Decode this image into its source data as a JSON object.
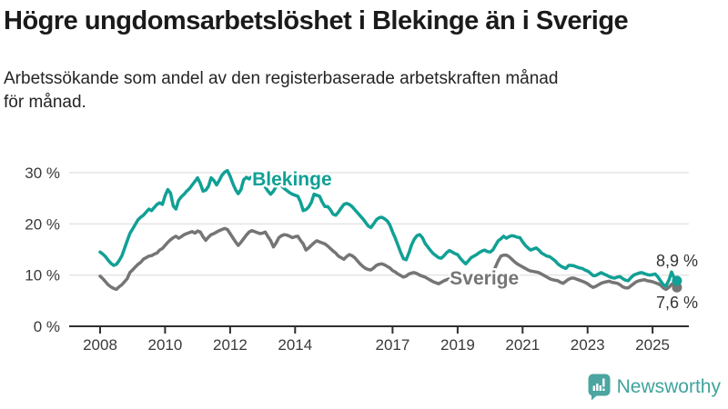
{
  "header": {
    "title": "Högre ungdomsarbetslöshet i Blekinge än i Sverige",
    "subtitle_line1": "Arbetssökande som andel av den registerbaserade arbetskraften månad",
    "subtitle_line2": "för månad."
  },
  "footer": {
    "brand": "Newsworthy",
    "brand_color": "#3fa49c",
    "icon": "newsworthy-bar-chart-bubble"
  },
  "chart_data": {
    "type": "line",
    "title": "Högre ungdomsarbetslöshet i Blekinge än i Sverige",
    "subtitle": "Arbetssökande som andel av den registerbaserade arbetskraften månad för månad.",
    "x_unit": "month",
    "x_start_year": 2008,
    "x_end_label_values": [
      "8,9 %",
      "7,6 %"
    ],
    "ylim": [
      0,
      32
    ],
    "grid": "horizontal",
    "legend_position": "inline-labels",
    "y_ticks": [
      {
        "v": 0,
        "label": "0 %"
      },
      {
        "v": 10,
        "label": "10 %"
      },
      {
        "v": 20,
        "label": "20 %"
      },
      {
        "v": 30,
        "label": "30 %"
      }
    ],
    "x_ticks": [
      {
        "year": 2008,
        "label": "2008"
      },
      {
        "year": 2010,
        "label": "2010"
      },
      {
        "year": 2012,
        "label": "2012"
      },
      {
        "year": 2014,
        "label": "2014"
      },
      {
        "year": 2017,
        "label": "2017"
      },
      {
        "year": 2019,
        "label": "2019"
      },
      {
        "year": 2021,
        "label": "2021"
      },
      {
        "year": 2023,
        "label": "2023"
      },
      {
        "year": 2025,
        "label": "2025"
      }
    ],
    "series": [
      {
        "name": "Blekinge",
        "color": "#11a095",
        "label_year": 2012.68,
        "label_value": 27.5,
        "end_label": "8,9 %",
        "end_label_position": "above",
        "values": [
          14.5,
          14.1,
          13.6,
          12.9,
          12.3,
          11.9,
          12.1,
          12.8,
          13.7,
          15.2,
          16.7,
          18.1,
          19.0,
          19.9,
          20.8,
          21.3,
          21.7,
          22.3,
          22.9,
          22.6,
          23.2,
          23.8,
          24.1,
          23.8,
          25.5,
          26.7,
          26.0,
          23.5,
          22.9,
          24.6,
          25.3,
          25.8,
          26.4,
          26.9,
          27.6,
          28.3,
          29.0,
          27.9,
          26.4,
          26.6,
          27.3,
          29.0,
          28.5,
          27.6,
          28.5,
          29.5,
          30.1,
          30.4,
          29.3,
          27.9,
          26.7,
          25.9,
          26.7,
          28.6,
          29.1,
          28.8,
          29.2,
          29.6,
          29.3,
          28.7,
          28.0,
          27.2,
          26.4,
          25.8,
          26.4,
          27.3,
          27.9,
          27.4,
          26.9,
          26.5,
          26.1,
          25.8,
          25.6,
          25.4,
          24.3,
          22.6,
          22.8,
          23.3,
          24.2,
          25.8,
          25.6,
          25.4,
          24.3,
          23.4,
          23.4,
          22.8,
          21.9,
          21.7,
          22.3,
          23.1,
          23.8,
          24.0,
          23.8,
          23.4,
          22.8,
          22.2,
          21.6,
          21.0,
          20.3,
          19.6,
          19.3,
          20.0,
          20.8,
          21.2,
          21.3,
          21.0,
          20.6,
          19.8,
          18.4,
          17.2,
          15.8,
          14.4,
          13.2,
          13.0,
          14.3,
          15.9,
          17.0,
          17.7,
          17.9,
          17.3,
          16.2,
          15.5,
          14.8,
          14.2,
          13.8,
          13.4,
          13.3,
          13.8,
          14.4,
          14.8,
          14.5,
          14.2,
          14.0,
          13.3,
          12.7,
          12.2,
          12.8,
          13.4,
          13.7,
          14.0,
          14.4,
          14.7,
          14.9,
          14.6,
          14.5,
          14.9,
          15.8,
          16.7,
          17.1,
          17.6,
          17.2,
          17.5,
          17.7,
          17.6,
          17.4,
          17.3,
          16.5,
          15.8,
          15.3,
          14.9,
          15.1,
          15.3,
          14.9,
          14.3,
          14.0,
          13.7,
          13.6,
          13.2,
          12.8,
          12.2,
          11.8,
          11.5,
          11.3,
          11.9,
          11.9,
          11.8,
          11.6,
          11.4,
          11.3,
          11.0,
          10.8,
          10.4,
          9.9,
          9.9,
          10.2,
          10.5,
          10.2,
          10.0,
          9.7,
          9.5,
          9.4,
          9.6,
          9.7,
          9.3,
          9.0,
          8.9,
          9.5,
          10.0,
          10.2,
          10.4,
          10.5,
          10.3,
          10.1,
          10.0,
          10.1,
          10.2,
          9.6,
          8.8,
          8.1,
          7.9,
          9.0,
          10.6,
          9.4,
          8.9
        ]
      },
      {
        "name": "Sverige",
        "color": "#757575",
        "label_year": 2018.76,
        "label_value": 8.2,
        "end_label": "7,6 %",
        "end_label_position": "below",
        "values": [
          9.8,
          9.3,
          8.7,
          8.1,
          7.7,
          7.4,
          7.2,
          7.7,
          8.1,
          8.7,
          9.3,
          10.5,
          11.0,
          11.6,
          12.1,
          12.5,
          13.1,
          13.4,
          13.7,
          13.8,
          14.1,
          14.3,
          14.9,
          15.2,
          15.8,
          16.4,
          16.9,
          17.3,
          17.6,
          17.2,
          17.5,
          17.9,
          18.1,
          18.3,
          18.5,
          18.2,
          18.6,
          18.4,
          17.5,
          16.8,
          17.4,
          17.9,
          18.1,
          18.4,
          18.7,
          18.9,
          19.1,
          18.9,
          18.1,
          17.3,
          16.5,
          15.8,
          16.4,
          17.1,
          17.8,
          18.4,
          18.7,
          18.5,
          18.3,
          18.1,
          18.2,
          18.4,
          17.5,
          16.7,
          15.5,
          16.3,
          17.3,
          17.7,
          17.9,
          17.8,
          17.6,
          17.3,
          17.5,
          17.6,
          16.8,
          16.1,
          14.9,
          15.3,
          15.8,
          16.3,
          16.7,
          16.5,
          16.3,
          16.1,
          15.7,
          15.2,
          14.7,
          14.3,
          13.7,
          13.4,
          13.1,
          13.6,
          14.0,
          13.8,
          13.4,
          12.8,
          12.2,
          11.7,
          11.3,
          11.1,
          11.0,
          11.4,
          11.9,
          12.1,
          12.2,
          12.0,
          11.7,
          11.4,
          10.9,
          10.6,
          10.2,
          9.9,
          9.6,
          9.8,
          10.2,
          10.4,
          10.5,
          10.3,
          10.0,
          9.8,
          9.6,
          9.3,
          9.0,
          8.7,
          8.5,
          8.3,
          8.6,
          8.9,
          9.1,
          9.3,
          9.4,
          9.5,
          9.6,
          9.5,
          9.4,
          9.3,
          9.4,
          9.6,
          9.8,
          9.9,
          10.0,
          10.1,
          10.1,
          10.0,
          10.0,
          10.4,
          11.6,
          12.8,
          13.7,
          13.9,
          13.9,
          13.6,
          13.1,
          12.6,
          12.2,
          11.9,
          11.6,
          11.3,
          11.0,
          10.8,
          10.7,
          10.6,
          10.5,
          10.2,
          9.9,
          9.6,
          9.3,
          9.1,
          9.0,
          8.9,
          8.6,
          8.4,
          8.8,
          9.2,
          9.4,
          9.4,
          9.2,
          9.0,
          8.8,
          8.6,
          8.3,
          7.9,
          7.6,
          7.8,
          8.1,
          8.4,
          8.6,
          8.7,
          8.8,
          8.6,
          8.5,
          8.4,
          8.1,
          7.7,
          7.5,
          7.5,
          7.9,
          8.3,
          8.7,
          8.9,
          9.0,
          9.1,
          8.9,
          8.8,
          8.7,
          8.5,
          8.3,
          8.0,
          7.5,
          7.2,
          7.6,
          8.2,
          8.4,
          7.6
        ]
      }
    ]
  }
}
